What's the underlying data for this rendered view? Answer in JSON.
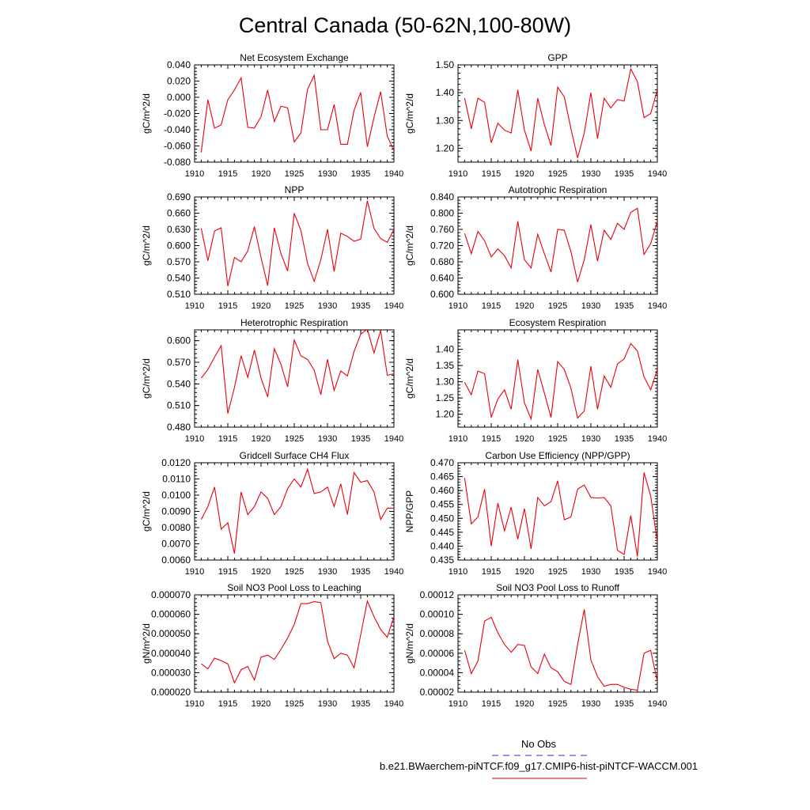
{
  "figure": {
    "title": "Central Canada (50-62N,100-80W)",
    "legend": [
      {
        "label": "No Obs",
        "style": "dashed",
        "color": "#2c2ccc"
      },
      {
        "label": "b.e21.BWaerchem-piNTCF.f09_g17.CMIP6-hist-piNTCF-WACCM.001",
        "style": "solid",
        "color": "#e8000b"
      }
    ]
  },
  "chart_data": [
    {
      "type": "line",
      "title": "Net Ecosystem Exchange",
      "ylabel": "gC/m^2/d",
      "xlim": [
        1910,
        1940
      ],
      "ylim": [
        -0.08,
        0.04
      ],
      "xticks": [
        "1910",
        "1915",
        "1920",
        "1925",
        "1930",
        "1935",
        "1940"
      ],
      "yticks": [
        "-0.080",
        "-0.060",
        "-0.040",
        "-0.020",
        "0.000",
        "0.020",
        "0.040"
      ],
      "ytick_values": [
        -0.08,
        -0.06,
        -0.04,
        -0.02,
        0.0,
        0.02,
        0.04
      ],
      "series_color": "#e8000b",
      "x": [
        1911,
        1912,
        1913,
        1914,
        1915,
        1916,
        1917,
        1918,
        1919,
        1920,
        1921,
        1922,
        1923,
        1924,
        1925,
        1926,
        1927,
        1928,
        1929,
        1930,
        1931,
        1932,
        1933,
        1934,
        1935,
        1936,
        1937,
        1938,
        1939,
        1940
      ],
      "y": [
        -0.068,
        -0.003,
        -0.038,
        -0.034,
        -0.003,
        0.009,
        0.024,
        -0.037,
        -0.038,
        -0.024,
        0.009,
        -0.03,
        -0.011,
        -0.013,
        -0.055,
        -0.044,
        0.01,
        0.027,
        -0.04,
        -0.04,
        -0.009,
        -0.058,
        -0.058,
        -0.016,
        0.006,
        -0.061,
        -0.025,
        0.007,
        -0.048,
        -0.066
      ]
    },
    {
      "type": "line",
      "title": "GPP",
      "ylabel": "gC/m^2/d",
      "xlim": [
        1910,
        1940
      ],
      "ylim": [
        1.15,
        1.5
      ],
      "xticks": [
        "1910",
        "1915",
        "1920",
        "1925",
        "1930",
        "1935",
        "1940"
      ],
      "yticks": [
        "1.20",
        "1.30",
        "1.40",
        "1.50"
      ],
      "ytick_values": [
        1.2,
        1.3,
        1.4,
        1.5
      ],
      "series_color": "#e8000b",
      "x": [
        1911,
        1912,
        1913,
        1914,
        1915,
        1916,
        1917,
        1918,
        1919,
        1920,
        1921,
        1922,
        1923,
        1924,
        1925,
        1926,
        1927,
        1928,
        1929,
        1930,
        1931,
        1932,
        1933,
        1934,
        1935,
        1936,
        1937,
        1938,
        1939,
        1940
      ],
      "y": [
        1.38,
        1.27,
        1.38,
        1.365,
        1.22,
        1.29,
        1.265,
        1.255,
        1.41,
        1.265,
        1.19,
        1.38,
        1.285,
        1.21,
        1.42,
        1.385,
        1.27,
        1.165,
        1.255,
        1.4,
        1.235,
        1.38,
        1.345,
        1.375,
        1.37,
        1.485,
        1.44,
        1.31,
        1.325,
        1.41
      ]
    },
    {
      "type": "line",
      "title": "NPP",
      "ylabel": "gC/m^2/d",
      "xlim": [
        1910,
        1940
      ],
      "ylim": [
        0.51,
        0.69
      ],
      "xticks": [
        "1910",
        "1915",
        "1920",
        "1925",
        "1930",
        "1935",
        "1940"
      ],
      "yticks": [
        "0.510",
        "0.540",
        "0.570",
        "0.600",
        "0.630",
        "0.660",
        "0.690"
      ],
      "ytick_values": [
        0.51,
        0.54,
        0.57,
        0.6,
        0.63,
        0.66,
        0.69
      ],
      "series_color": "#e8000b",
      "x": [
        1911,
        1912,
        1913,
        1914,
        1915,
        1916,
        1917,
        1918,
        1919,
        1920,
        1921,
        1922,
        1923,
        1924,
        1925,
        1926,
        1927,
        1928,
        1929,
        1930,
        1931,
        1932,
        1933,
        1934,
        1935,
        1936,
        1937,
        1938,
        1939,
        1940
      ],
      "y": [
        0.632,
        0.572,
        0.627,
        0.633,
        0.525,
        0.578,
        0.57,
        0.59,
        0.635,
        0.578,
        0.526,
        0.633,
        0.585,
        0.553,
        0.66,
        0.628,
        0.567,
        0.534,
        0.574,
        0.63,
        0.552,
        0.623,
        0.617,
        0.608,
        0.612,
        0.683,
        0.632,
        0.613,
        0.606,
        0.63
      ]
    },
    {
      "type": "line",
      "title": "Autotrophic Respiration",
      "ylabel": "gC/m^2/d",
      "xlim": [
        1910,
        1940
      ],
      "ylim": [
        0.6,
        0.84
      ],
      "xticks": [
        "1910",
        "1915",
        "1920",
        "1925",
        "1930",
        "1935",
        "1940"
      ],
      "yticks": [
        "0.600",
        "0.640",
        "0.680",
        "0.720",
        "0.760",
        "0.800",
        "0.840"
      ],
      "ytick_values": [
        0.6,
        0.64,
        0.68,
        0.72,
        0.76,
        0.8,
        0.84
      ],
      "series_color": "#e8000b",
      "x": [
        1911,
        1912,
        1913,
        1914,
        1915,
        1916,
        1917,
        1918,
        1919,
        1920,
        1921,
        1922,
        1923,
        1924,
        1925,
        1926,
        1927,
        1928,
        1929,
        1930,
        1931,
        1932,
        1933,
        1934,
        1935,
        1936,
        1937,
        1938,
        1939,
        1940
      ],
      "y": [
        0.75,
        0.7,
        0.755,
        0.732,
        0.692,
        0.712,
        0.695,
        0.665,
        0.78,
        0.685,
        0.665,
        0.748,
        0.7,
        0.655,
        0.76,
        0.758,
        0.705,
        0.63,
        0.685,
        0.772,
        0.682,
        0.758,
        0.735,
        0.775,
        0.76,
        0.802,
        0.812,
        0.698,
        0.725,
        0.78
      ]
    },
    {
      "type": "line",
      "title": "Heterotrophic Respiration",
      "ylabel": "gC/m^2/d",
      "xlim": [
        1910,
        1940
      ],
      "ylim": [
        0.48,
        0.615
      ],
      "xticks": [
        "1910",
        "1915",
        "1920",
        "1925",
        "1930",
        "1935",
        "1940"
      ],
      "yticks": [
        "0.480",
        "0.510",
        "0.540",
        "0.570",
        "0.600"
      ],
      "ytick_values": [
        0.48,
        0.51,
        0.54,
        0.57,
        0.6
      ],
      "series_color": "#e8000b",
      "x": [
        1911,
        1912,
        1913,
        1914,
        1915,
        1916,
        1917,
        1918,
        1919,
        1920,
        1921,
        1922,
        1923,
        1924,
        1925,
        1926,
        1927,
        1928,
        1929,
        1930,
        1931,
        1932,
        1933,
        1934,
        1935,
        1936,
        1937,
        1938,
        1939,
        1940
      ],
      "y": [
        0.548,
        0.56,
        0.577,
        0.593,
        0.499,
        0.535,
        0.579,
        0.549,
        0.587,
        0.548,
        0.522,
        0.589,
        0.567,
        0.536,
        0.601,
        0.579,
        0.574,
        0.559,
        0.525,
        0.574,
        0.531,
        0.558,
        0.551,
        0.585,
        0.609,
        0.616,
        0.583,
        0.614,
        0.552,
        0.554
      ]
    },
    {
      "type": "line",
      "title": "Ecosystem Respiration",
      "ylabel": "gC/m^2/d",
      "xlim": [
        1910,
        1940
      ],
      "ylim": [
        1.16,
        1.46
      ],
      "xticks": [
        "1910",
        "1915",
        "1920",
        "1925",
        "1930",
        "1935",
        "1940"
      ],
      "yticks": [
        "1.20",
        "1.25",
        "1.30",
        "1.35",
        "1.40"
      ],
      "ytick_values": [
        1.2,
        1.25,
        1.3,
        1.35,
        1.4
      ],
      "series_color": "#e8000b",
      "x": [
        1911,
        1912,
        1913,
        1914,
        1915,
        1916,
        1917,
        1918,
        1919,
        1920,
        1921,
        1922,
        1923,
        1924,
        1925,
        1926,
        1927,
        1928,
        1929,
        1930,
        1931,
        1932,
        1933,
        1934,
        1935,
        1936,
        1937,
        1938,
        1939,
        1940
      ],
      "y": [
        1.298,
        1.26,
        1.333,
        1.325,
        1.19,
        1.247,
        1.275,
        1.215,
        1.368,
        1.235,
        1.185,
        1.338,
        1.265,
        1.19,
        1.362,
        1.338,
        1.28,
        1.188,
        1.21,
        1.348,
        1.215,
        1.318,
        1.283,
        1.355,
        1.37,
        1.418,
        1.395,
        1.315,
        1.275,
        1.338
      ]
    },
    {
      "type": "line",
      "title": "Gridcell Surface CH4 Flux",
      "ylabel": "gC/m^2/d",
      "xlim": [
        1910,
        1940
      ],
      "ylim": [
        0.006,
        0.012
      ],
      "xticks": [
        "1910",
        "1915",
        "1920",
        "1925",
        "1930",
        "1935",
        "1940"
      ],
      "yticks": [
        "0.0060",
        "0.0070",
        "0.0080",
        "0.0090",
        "0.0100",
        "0.0110",
        "0.0120"
      ],
      "ytick_values": [
        0.006,
        0.007,
        0.008,
        0.009,
        0.01,
        0.011,
        0.012
      ],
      "series_color": "#e8000b",
      "x": [
        1911,
        1912,
        1913,
        1914,
        1915,
        1916,
        1917,
        1918,
        1919,
        1920,
        1921,
        1922,
        1923,
        1924,
        1925,
        1926,
        1927,
        1928,
        1929,
        1930,
        1931,
        1932,
        1933,
        1934,
        1935,
        1936,
        1937,
        1938,
        1939,
        1940
      ],
      "y": [
        0.0085,
        0.0093,
        0.0105,
        0.0079,
        0.0083,
        0.0064,
        0.0102,
        0.0088,
        0.0093,
        0.0102,
        0.0098,
        0.0088,
        0.0093,
        0.0104,
        0.011,
        0.0105,
        0.0116,
        0.0101,
        0.0102,
        0.0105,
        0.0093,
        0.0107,
        0.0088,
        0.0114,
        0.0108,
        0.0109,
        0.0102,
        0.0085,
        0.0092,
        0.0092
      ]
    },
    {
      "type": "line",
      "title": "Carbon Use Efficiency (NPP/GPP)",
      "ylabel": "NPP/GPP",
      "xlim": [
        1910,
        1940
      ],
      "ylim": [
        0.435,
        0.47
      ],
      "xticks": [
        "1910",
        "1915",
        "1920",
        "1925",
        "1930",
        "1935",
        "1940"
      ],
      "yticks": [
        "0.435",
        "0.440",
        "0.445",
        "0.450",
        "0.455",
        "0.460",
        "0.465",
        "0.470"
      ],
      "ytick_values": [
        0.435,
        0.44,
        0.445,
        0.45,
        0.455,
        0.46,
        0.465,
        0.47
      ],
      "series_color": "#e8000b",
      "x": [
        1911,
        1912,
        1913,
        1914,
        1915,
        1916,
        1917,
        1918,
        1919,
        1920,
        1921,
        1922,
        1923,
        1924,
        1925,
        1926,
        1927,
        1928,
        1929,
        1930,
        1931,
        1932,
        1933,
        1934,
        1935,
        1936,
        1937,
        1938,
        1939,
        1940
      ],
      "y": [
        0.4645,
        0.448,
        0.4505,
        0.4605,
        0.44,
        0.4555,
        0.4455,
        0.454,
        0.4425,
        0.4535,
        0.439,
        0.4575,
        0.4545,
        0.456,
        0.4635,
        0.4495,
        0.4505,
        0.4605,
        0.462,
        0.4575,
        0.4573,
        0.4575,
        0.4545,
        0.4385,
        0.437,
        0.451,
        0.4363,
        0.4665,
        0.458,
        0.4415
      ]
    },
    {
      "type": "line",
      "title": "Soil NO3 Pool Loss to Leaching",
      "ylabel": "gN/m^2/d",
      "xlim": [
        1910,
        1940
      ],
      "ylim": [
        2e-05,
        7e-05
      ],
      "xticks": [
        "1910",
        "1915",
        "1920",
        "1925",
        "1930",
        "1935",
        "1940"
      ],
      "yticks": [
        "0.000020",
        "0.000030",
        "0.000040",
        "0.000050",
        "0.000060",
        "0.000070"
      ],
      "ytick_values": [
        2e-05,
        3e-05,
        4e-05,
        5e-05,
        6e-05,
        7e-05
      ],
      "series_color": "#e8000b",
      "x": [
        1911,
        1912,
        1913,
        1914,
        1915,
        1916,
        1917,
        1918,
        1919,
        1920,
        1921,
        1922,
        1923,
        1924,
        1925,
        1926,
        1927,
        1928,
        1929,
        1930,
        1931,
        1932,
        1933,
        1934,
        1935,
        1936,
        1937,
        1938,
        1939,
        1940
      ],
      "y": [
        3.45e-05,
        3.2e-05,
        3.75e-05,
        3.62e-05,
        3.45e-05,
        2.48e-05,
        3.15e-05,
        3.32e-05,
        2.62e-05,
        3.8e-05,
        3.9e-05,
        3.68e-05,
        4.2e-05,
        4.78e-05,
        5.48e-05,
        6.55e-05,
        6.55e-05,
        6.65e-05,
        6.6e-05,
        4.62e-05,
        3.72e-05,
        4e-05,
        3.9e-05,
        3.25e-05,
        4.95e-05,
        6.68e-05,
        5.88e-05,
        5.22e-05,
        4.82e-05,
        5.88e-05
      ]
    },
    {
      "type": "line",
      "title": "Soil NO3 Pool Loss to Runoff",
      "ylabel": "gN/m^2/d",
      "xlim": [
        1910,
        1940
      ],
      "ylim": [
        2e-05,
        0.00012
      ],
      "xticks": [
        "1910",
        "1915",
        "1920",
        "1925",
        "1930",
        "1935",
        "1940"
      ],
      "yticks": [
        "0.00002",
        "0.00004",
        "0.00006",
        "0.00008",
        "0.00010",
        "0.00012"
      ],
      "ytick_values": [
        2e-05,
        4e-05,
        6e-05,
        8e-05,
        0.0001,
        0.00012
      ],
      "series_color": "#e8000b",
      "x": [
        1911,
        1912,
        1913,
        1914,
        1915,
        1916,
        1917,
        1918,
        1919,
        1920,
        1921,
        1922,
        1923,
        1924,
        1925,
        1926,
        1927,
        1928,
        1929,
        1930,
        1931,
        1932,
        1933,
        1934,
        1935,
        1936,
        1937,
        1938,
        1939,
        1940
      ],
      "y": [
        6.3e-05,
        3.9e-05,
        5.2e-05,
        9.3e-05,
        9.7e-05,
        8.1e-05,
        6.9e-05,
        6.1e-05,
        6.9e-05,
        6.8e-05,
        4.6e-05,
        3.9e-05,
        5.9e-05,
        4.5e-05,
        4.1e-05,
        3.1e-05,
        2.8e-05,
        6.9e-05,
        0.000105,
        5.3e-05,
        3.6e-05,
        2.6e-05,
        2.8e-05,
        2.8e-05,
        2.5e-05,
        2.3e-05,
        2.2e-05,
        6e-05,
        6.3e-05,
        3.1e-05
      ]
    }
  ]
}
